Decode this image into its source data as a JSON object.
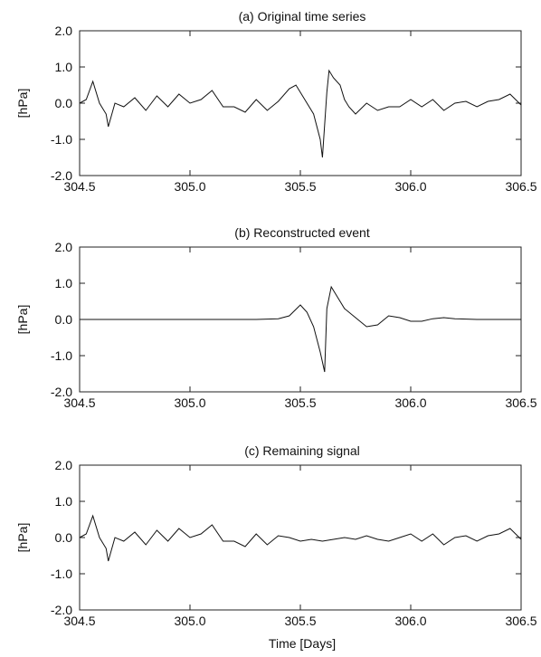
{
  "chart_data": [
    {
      "type": "line",
      "title": "(a) Original time series",
      "xlabel": "",
      "ylabel": "[hPa]",
      "xlim": [
        304.5,
        306.5
      ],
      "ylim": [
        -2.0,
        2.0
      ],
      "x_ticks": [
        "304.5",
        "305.0",
        "305.5",
        "306.0",
        "306.5"
      ],
      "y_ticks": [
        "2.0",
        "1.0",
        "0.0",
        "-1.0",
        "-2.0"
      ],
      "series": [
        {
          "x": [
            304.5,
            304.53,
            304.56,
            304.59,
            304.62,
            304.63,
            304.66,
            304.7,
            304.75,
            304.8,
            304.85,
            304.9,
            304.95,
            305.0,
            305.05,
            305.1,
            305.15,
            305.2,
            305.25,
            305.3,
            305.35,
            305.4,
            305.45,
            305.48,
            305.5,
            305.53,
            305.56,
            305.59,
            305.6,
            305.62,
            305.63,
            305.65,
            305.68,
            305.7,
            305.72,
            305.75,
            305.8,
            305.85,
            305.9,
            305.95,
            306.0,
            306.05,
            306.1,
            306.15,
            306.2,
            306.25,
            306.3,
            306.35,
            306.4,
            306.45,
            306.5
          ],
          "y": [
            0.0,
            0.1,
            0.6,
            0.0,
            -0.3,
            -0.65,
            0.0,
            -0.1,
            0.15,
            -0.2,
            0.2,
            -0.1,
            0.25,
            0.0,
            0.1,
            0.35,
            -0.1,
            -0.1,
            -0.25,
            0.1,
            -0.2,
            0.05,
            0.4,
            0.5,
            0.3,
            0.0,
            -0.3,
            -1.0,
            -1.5,
            0.3,
            0.9,
            0.7,
            0.5,
            0.1,
            -0.1,
            -0.3,
            0.0,
            -0.2,
            -0.1,
            -0.1,
            0.1,
            -0.1,
            0.1,
            -0.2,
            0.0,
            0.05,
            -0.1,
            0.05,
            0.1,
            0.25,
            -0.05
          ]
        }
      ]
    },
    {
      "type": "line",
      "title": "(b) Reconstructed event",
      "xlabel": "",
      "ylabel": "[hPa]",
      "xlim": [
        304.5,
        306.5
      ],
      "ylim": [
        -2.0,
        2.0
      ],
      "x_ticks": [
        "304.5",
        "305.0",
        "305.5",
        "306.0",
        "306.5"
      ],
      "y_ticks": [
        "2.0",
        "1.0",
        "0.0",
        "-1.0",
        "-2.0"
      ],
      "series": [
        {
          "x": [
            304.5,
            305.3,
            305.4,
            305.45,
            305.5,
            305.53,
            305.56,
            305.59,
            305.61,
            305.62,
            305.64,
            305.66,
            305.7,
            305.75,
            305.8,
            305.85,
            305.9,
            305.95,
            306.0,
            306.05,
            306.1,
            306.15,
            306.2,
            306.3,
            306.5
          ],
          "y": [
            0.0,
            0.0,
            0.02,
            0.1,
            0.4,
            0.2,
            -0.2,
            -0.9,
            -1.45,
            0.3,
            0.9,
            0.7,
            0.3,
            0.05,
            -0.2,
            -0.15,
            0.1,
            0.05,
            -0.05,
            -0.05,
            0.02,
            0.05,
            0.02,
            0.0,
            0.0
          ]
        }
      ]
    },
    {
      "type": "line",
      "title": "(c) Remaining signal",
      "xlabel": "Time [Days]",
      "ylabel": "[hPa]",
      "xlim": [
        304.5,
        306.5
      ],
      "ylim": [
        -2.0,
        2.0
      ],
      "x_ticks": [
        "304.5",
        "305.0",
        "305.5",
        "306.0",
        "306.5"
      ],
      "y_ticks": [
        "2.0",
        "1.0",
        "0.0",
        "-1.0",
        "-2.0"
      ],
      "series": [
        {
          "x": [
            304.5,
            304.53,
            304.56,
            304.59,
            304.62,
            304.63,
            304.66,
            304.7,
            304.75,
            304.8,
            304.85,
            304.9,
            304.95,
            305.0,
            305.05,
            305.1,
            305.15,
            305.2,
            305.25,
            305.3,
            305.35,
            305.4,
            305.45,
            305.5,
            305.55,
            305.6,
            305.65,
            305.7,
            305.75,
            305.8,
            305.85,
            305.9,
            305.95,
            306.0,
            306.05,
            306.1,
            306.15,
            306.2,
            306.25,
            306.3,
            306.35,
            306.4,
            306.45,
            306.5
          ],
          "y": [
            0.0,
            0.1,
            0.6,
            0.0,
            -0.3,
            -0.65,
            0.0,
            -0.1,
            0.15,
            -0.2,
            0.2,
            -0.1,
            0.25,
            0.0,
            0.1,
            0.35,
            -0.1,
            -0.1,
            -0.25,
            0.1,
            -0.2,
            0.05,
            0.0,
            -0.1,
            -0.05,
            -0.1,
            -0.05,
            0.0,
            -0.05,
            0.05,
            -0.05,
            -0.1,
            0.0,
            0.1,
            -0.1,
            0.1,
            -0.2,
            0.0,
            0.05,
            -0.1,
            0.05,
            0.1,
            0.25,
            -0.05
          ]
        }
      ]
    }
  ]
}
